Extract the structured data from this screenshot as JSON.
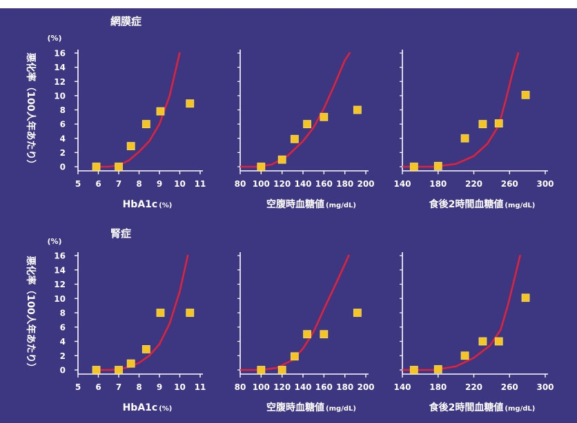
{
  "colors": {
    "background": "#3d3681",
    "axis": "#ffffff",
    "curve": "#e0223a",
    "marker": "#f5c623",
    "marker_edge": "#f8dc6a"
  },
  "ylabel": "悪化率（100人年あたり）",
  "chart_data": [
    {
      "type": "scatter",
      "section": "網膜症",
      "unit_label": "(%)",
      "xlabel": "HbA1c",
      "xlabel_unit": "(%)",
      "xlim": [
        5,
        11
      ],
      "ylim": [
        0,
        16
      ],
      "xticks": [
        5,
        6,
        7,
        8,
        9,
        10,
        11
      ],
      "yticks": [
        0,
        2,
        4,
        6,
        8,
        10,
        12,
        14,
        16
      ],
      "points": [
        {
          "x": 5.9,
          "y": 0
        },
        {
          "x": 7.0,
          "y": 0
        },
        {
          "x": 7.6,
          "y": 2.9
        },
        {
          "x": 8.35,
          "y": 6
        },
        {
          "x": 9.05,
          "y": 7.8
        },
        {
          "x": 10.5,
          "y": 8.9
        }
      ],
      "curve": [
        {
          "x": 5.8,
          "y": 0
        },
        {
          "x": 6.5,
          "y": 0
        },
        {
          "x": 7.0,
          "y": 0.2
        },
        {
          "x": 7.5,
          "y": 0.9
        },
        {
          "x": 8.0,
          "y": 2.1
        },
        {
          "x": 8.5,
          "y": 3.6
        },
        {
          "x": 9.0,
          "y": 6.0
        },
        {
          "x": 9.5,
          "y": 10.0
        },
        {
          "x": 10.0,
          "y": 16.1
        }
      ]
    },
    {
      "type": "scatter",
      "section": "",
      "unit_label": "",
      "xlabel": "空腹時血糖値",
      "xlabel_unit": "(mg/dL)",
      "xlim": [
        80,
        200
      ],
      "ylim": [
        0,
        16
      ],
      "xticks": [
        80,
        100,
        120,
        140,
        160,
        180,
        200
      ],
      "yticks": [],
      "points": [
        {
          "x": 100,
          "y": 0
        },
        {
          "x": 120,
          "y": 1
        },
        {
          "x": 132,
          "y": 3.9
        },
        {
          "x": 144,
          "y": 6
        },
        {
          "x": 160,
          "y": 7
        },
        {
          "x": 192,
          "y": 8
        }
      ],
      "curve": [
        {
          "x": 80,
          "y": 0
        },
        {
          "x": 95,
          "y": 0
        },
        {
          "x": 110,
          "y": 0.3
        },
        {
          "x": 125,
          "y": 1.5
        },
        {
          "x": 140,
          "y": 3.6
        },
        {
          "x": 150,
          "y": 5.5
        },
        {
          "x": 160,
          "y": 8.2
        },
        {
          "x": 170,
          "y": 11.5
        },
        {
          "x": 180,
          "y": 15.0
        },
        {
          "x": 185,
          "y": 16.1
        }
      ]
    },
    {
      "type": "scatter",
      "section": "",
      "unit_label": "",
      "xlabel": "食後2時間血糖値",
      "xlabel_unit": "(mg/dL)",
      "xlim": [
        140,
        300
      ],
      "ylim": [
        0,
        16
      ],
      "xticks": [
        140,
        180,
        220,
        260,
        300
      ],
      "yticks": [],
      "points": [
        {
          "x": 153,
          "y": 0
        },
        {
          "x": 180,
          "y": 0.1
        },
        {
          "x": 210,
          "y": 4
        },
        {
          "x": 230,
          "y": 6
        },
        {
          "x": 248,
          "y": 6.1
        },
        {
          "x": 278,
          "y": 10.1
        }
      ],
      "curve": [
        {
          "x": 140,
          "y": 0
        },
        {
          "x": 175,
          "y": 0
        },
        {
          "x": 200,
          "y": 0.4
        },
        {
          "x": 220,
          "y": 1.5
        },
        {
          "x": 235,
          "y": 3.2
        },
        {
          "x": 248,
          "y": 5.8
        },
        {
          "x": 256,
          "y": 9.5
        },
        {
          "x": 264,
          "y": 13.5
        },
        {
          "x": 270,
          "y": 16.1
        }
      ]
    },
    {
      "type": "scatter",
      "section": "腎症",
      "unit_label": "(%)",
      "xlabel": "HbA1c",
      "xlabel_unit": "(%)",
      "xlim": [
        5,
        11
      ],
      "ylim": [
        0,
        16
      ],
      "xticks": [
        5,
        6,
        7,
        8,
        9,
        10,
        11
      ],
      "yticks": [
        0,
        2,
        4,
        6,
        8,
        10,
        12,
        14,
        16
      ],
      "points": [
        {
          "x": 5.9,
          "y": 0
        },
        {
          "x": 7.0,
          "y": 0
        },
        {
          "x": 7.6,
          "y": 0.9
        },
        {
          "x": 8.35,
          "y": 2.9
        },
        {
          "x": 9.05,
          "y": 8
        },
        {
          "x": 10.5,
          "y": 8
        }
      ],
      "curve": [
        {
          "x": 5.8,
          "y": 0
        },
        {
          "x": 6.5,
          "y": 0
        },
        {
          "x": 7.0,
          "y": 0.1
        },
        {
          "x": 7.5,
          "y": 0.4
        },
        {
          "x": 8.0,
          "y": 1.0
        },
        {
          "x": 8.5,
          "y": 2.0
        },
        {
          "x": 9.0,
          "y": 3.6
        },
        {
          "x": 9.5,
          "y": 6.5
        },
        {
          "x": 10.0,
          "y": 11.0
        },
        {
          "x": 10.4,
          "y": 16.1
        }
      ]
    },
    {
      "type": "scatter",
      "section": "",
      "unit_label": "",
      "xlabel": "空腹時血糖値",
      "xlabel_unit": "(mg/dL)",
      "xlim": [
        80,
        200
      ],
      "ylim": [
        0,
        16
      ],
      "xticks": [
        80,
        100,
        120,
        140,
        160,
        180,
        200
      ],
      "yticks": [],
      "points": [
        {
          "x": 100,
          "y": 0
        },
        {
          "x": 120,
          "y": 0
        },
        {
          "x": 132,
          "y": 1.9
        },
        {
          "x": 144,
          "y": 5
        },
        {
          "x": 160,
          "y": 5
        },
        {
          "x": 192,
          "y": 8
        }
      ],
      "curve": [
        {
          "x": 80,
          "y": 0
        },
        {
          "x": 100,
          "y": 0
        },
        {
          "x": 115,
          "y": 0.3
        },
        {
          "x": 130,
          "y": 1.4
        },
        {
          "x": 140,
          "y": 3.0
        },
        {
          "x": 150,
          "y": 5.3
        },
        {
          "x": 160,
          "y": 8.5
        },
        {
          "x": 170,
          "y": 11.6
        },
        {
          "x": 180,
          "y": 14.8
        },
        {
          "x": 184,
          "y": 16.1
        }
      ]
    },
    {
      "type": "scatter",
      "section": "",
      "unit_label": "",
      "xlabel": "食後2時間血糖値",
      "xlabel_unit": "(mg/dL)",
      "xlim": [
        140,
        300
      ],
      "ylim": [
        0,
        16
      ],
      "xticks": [
        140,
        180,
        220,
        260,
        300
      ],
      "yticks": [],
      "points": [
        {
          "x": 153,
          "y": 0
        },
        {
          "x": 180,
          "y": 0.1
        },
        {
          "x": 210,
          "y": 2
        },
        {
          "x": 230,
          "y": 4
        },
        {
          "x": 248,
          "y": 4
        },
        {
          "x": 278,
          "y": 10.1
        }
      ],
      "curve": [
        {
          "x": 140,
          "y": 0
        },
        {
          "x": 175,
          "y": 0
        },
        {
          "x": 200,
          "y": 0.5
        },
        {
          "x": 220,
          "y": 1.7
        },
        {
          "x": 238,
          "y": 3.4
        },
        {
          "x": 250,
          "y": 5.6
        },
        {
          "x": 258,
          "y": 9.0
        },
        {
          "x": 266,
          "y": 13.0
        },
        {
          "x": 272,
          "y": 16.1
        }
      ]
    }
  ]
}
